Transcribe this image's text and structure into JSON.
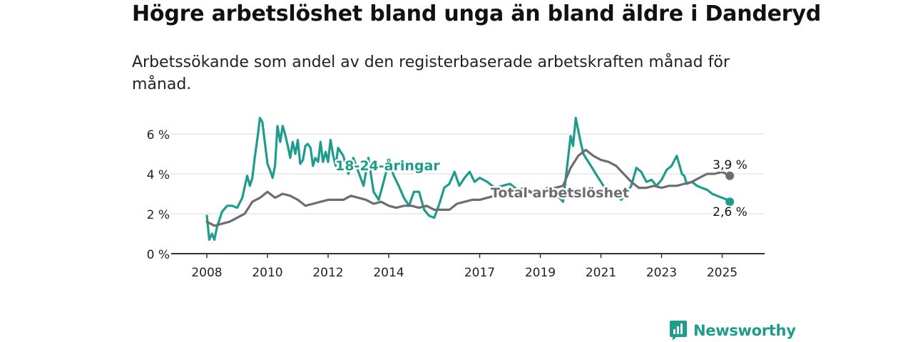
{
  "title": "Högre arbetslöshet bland unga än bland äldre i Danderyd",
  "subtitle": "Arbetssökande som andel av den registerbaserade arbetskraften månad för månad.",
  "brand": {
    "name": "Newsworthy",
    "color": "#1e9c8e"
  },
  "chart_data": {
    "type": "line",
    "x_range": [
      2008.0,
      2025.5
    ],
    "ylim": [
      0,
      7
    ],
    "grid": true,
    "y_ticks": [
      {
        "value": 0,
        "label": "0 %"
      },
      {
        "value": 2,
        "label": "2 %"
      },
      {
        "value": 4,
        "label": "4 %"
      },
      {
        "value": 6,
        "label": "6 %"
      }
    ],
    "x_ticks": [
      {
        "value": 2008,
        "label": "2008"
      },
      {
        "value": 2010,
        "label": "2010"
      },
      {
        "value": 2012,
        "label": "2012"
      },
      {
        "value": 2014,
        "label": "2014"
      },
      {
        "value": 2017,
        "label": "2017"
      },
      {
        "value": 2019,
        "label": "2019"
      },
      {
        "value": 2021,
        "label": "2021"
      },
      {
        "value": 2023,
        "label": "2023"
      },
      {
        "value": 2025,
        "label": "2025"
      }
    ],
    "series": [
      {
        "name": "18-24-åringar",
        "color": "#1e9c8e",
        "end_label": "2,6 %",
        "x": [
          2008.0,
          2008.08,
          2008.17,
          2008.25,
          2008.33,
          2008.5,
          2008.67,
          2008.83,
          2009.0,
          2009.17,
          2009.33,
          2009.42,
          2009.5,
          2009.58,
          2009.67,
          2009.75,
          2009.83,
          2009.92,
          2010.0,
          2010.08,
          2010.17,
          2010.25,
          2010.33,
          2010.42,
          2010.5,
          2010.58,
          2010.67,
          2010.75,
          2010.83,
          2010.92,
          2011.0,
          2011.08,
          2011.17,
          2011.25,
          2011.33,
          2011.42,
          2011.5,
          2011.58,
          2011.67,
          2011.75,
          2011.83,
          2011.92,
          2012.0,
          2012.08,
          2012.17,
          2012.25,
          2012.33,
          2012.5,
          2012.67,
          2012.83,
          2013.0,
          2013.17,
          2013.33,
          2013.5,
          2013.67,
          2013.83,
          2014.0,
          2014.17,
          2014.33,
          2014.5,
          2014.67,
          2014.83,
          2015.0,
          2015.17,
          2015.33,
          2015.5,
          2015.67,
          2015.83,
          2016.0,
          2016.17,
          2016.33,
          2016.5,
          2016.67,
          2016.83,
          2017.0,
          2017.25,
          2017.5,
          2017.75,
          2018.0,
          2018.25,
          2018.5,
          2018.75,
          2019.0,
          2019.25,
          2019.5,
          2019.75,
          2020.0,
          2020.08,
          2020.17,
          2020.25,
          2020.33,
          2020.42,
          2020.5,
          2020.67,
          2020.83,
          2021.0,
          2021.17,
          2021.33,
          2021.5,
          2021.67,
          2021.83,
          2022.0,
          2022.17,
          2022.33,
          2022.5,
          2022.67,
          2022.83,
          2023.0,
          2023.17,
          2023.33,
          2023.5,
          2023.58,
          2023.67,
          2023.75,
          2023.83,
          2024.0,
          2024.17,
          2024.33,
          2024.5,
          2024.67,
          2024.83,
          2025.0,
          2025.17,
          2025.25
        ],
        "values": [
          1.9,
          0.7,
          1.0,
          0.7,
          1.3,
          2.1,
          2.4,
          2.4,
          2.3,
          2.8,
          3.9,
          3.4,
          3.8,
          4.8,
          5.8,
          6.8,
          6.6,
          5.5,
          4.5,
          4.2,
          3.8,
          4.4,
          6.4,
          5.6,
          6.4,
          6.0,
          5.4,
          4.8,
          5.6,
          5.0,
          5.7,
          4.5,
          4.7,
          5.4,
          5.5,
          5.3,
          4.4,
          4.8,
          4.6,
          5.6,
          4.6,
          5.1,
          4.6,
          5.7,
          4.9,
          4.4,
          5.3,
          4.9,
          4.0,
          4.8,
          4.1,
          3.4,
          4.8,
          3.1,
          2.7,
          3.6,
          4.6,
          3.9,
          3.4,
          2.8,
          2.4,
          3.1,
          3.1,
          2.2,
          1.9,
          1.8,
          2.5,
          3.3,
          3.5,
          4.1,
          3.4,
          3.8,
          4.1,
          3.6,
          3.8,
          3.6,
          3.3,
          3.4,
          3.5,
          3.2,
          3.3,
          3.0,
          3.1,
          3.3,
          3.0,
          2.6,
          5.9,
          5.4,
          6.8,
          6.2,
          5.6,
          5.0,
          4.8,
          4.4,
          4.0,
          3.6,
          3.2,
          3.0,
          2.9,
          2.7,
          3.0,
          3.4,
          4.3,
          4.1,
          3.6,
          3.7,
          3.4,
          3.7,
          4.2,
          4.4,
          4.9,
          4.5,
          4.0,
          3.9,
          3.5,
          3.6,
          3.4,
          3.3,
          3.2,
          3.0,
          2.9,
          2.8,
          2.7,
          2.6
        ]
      },
      {
        "name": "Total arbetslöshet",
        "color": "#6e6c72",
        "end_label": "3,9 %",
        "x": [
          2008.0,
          2008.25,
          2008.5,
          2008.75,
          2009.0,
          2009.25,
          2009.5,
          2009.75,
          2010.0,
          2010.25,
          2010.5,
          2010.75,
          2011.0,
          2011.25,
          2011.5,
          2011.75,
          2012.0,
          2012.25,
          2012.5,
          2012.75,
          2013.0,
          2013.25,
          2013.5,
          2013.75,
          2014.0,
          2014.25,
          2014.5,
          2014.75,
          2015.0,
          2015.25,
          2015.5,
          2015.75,
          2016.0,
          2016.25,
          2016.5,
          2016.75,
          2017.0,
          2017.25,
          2017.5,
          2017.75,
          2018.0,
          2018.25,
          2018.5,
          2018.75,
          2019.0,
          2019.25,
          2019.5,
          2019.75,
          2020.0,
          2020.25,
          2020.5,
          2020.75,
          2021.0,
          2021.25,
          2021.5,
          2021.75,
          2022.0,
          2022.25,
          2022.5,
          2022.75,
          2023.0,
          2023.25,
          2023.5,
          2023.75,
          2024.0,
          2024.25,
          2024.5,
          2024.75,
          2025.0,
          2025.25
        ],
        "values": [
          1.6,
          1.4,
          1.5,
          1.6,
          1.8,
          2.0,
          2.6,
          2.8,
          3.1,
          2.8,
          3.0,
          2.9,
          2.7,
          2.4,
          2.5,
          2.6,
          2.7,
          2.7,
          2.7,
          2.9,
          2.8,
          2.7,
          2.5,
          2.6,
          2.4,
          2.3,
          2.4,
          2.4,
          2.3,
          2.4,
          2.2,
          2.2,
          2.2,
          2.5,
          2.6,
          2.7,
          2.7,
          2.8,
          2.9,
          3.0,
          3.1,
          3.1,
          3.1,
          3.1,
          3.1,
          3.2,
          3.3,
          3.4,
          4.3,
          4.9,
          5.2,
          4.9,
          4.7,
          4.6,
          4.4,
          4.0,
          3.6,
          3.3,
          3.3,
          3.4,
          3.3,
          3.4,
          3.4,
          3.5,
          3.6,
          3.8,
          4.0,
          4.0,
          4.1,
          3.9
        ]
      }
    ]
  }
}
